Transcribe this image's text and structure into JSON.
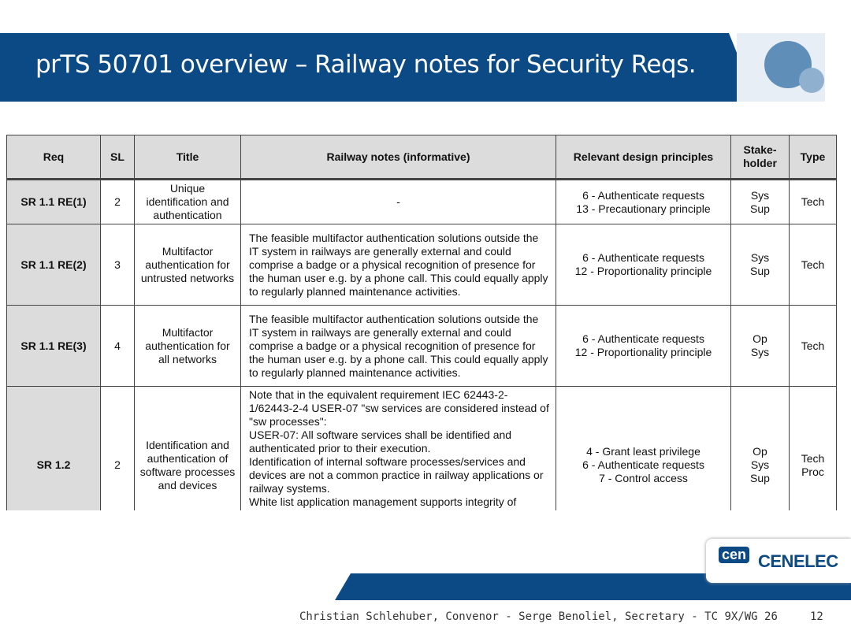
{
  "header": {
    "title": "prTS 50701 overview – Railway notes for Security Reqs."
  },
  "table": {
    "columns": [
      "Req",
      "SL",
      "Title",
      "Railway notes (informative)",
      "Relevant design principles",
      "Stake-holder",
      "Type"
    ],
    "rows": [
      {
        "req": "SR 1.1 RE(1)",
        "sl": "2",
        "title": "Unique identification and authentication",
        "notes": [
          "-"
        ],
        "principles": [
          "6 - Authenticate requests",
          "13 - Precautionary principle"
        ],
        "stakeholder": [
          "Sys",
          "Sup"
        ],
        "type": [
          "Tech"
        ]
      },
      {
        "req": "SR 1.1 RE(2)",
        "sl": "3",
        "title": "Multifactor authentication for untrusted networks",
        "notes": [
          "The feasible multifactor authentication solutions outside the IT system in railways are generally external and could comprise a badge or a physical recognition of presence for the human user e.g. by a phone call. This could equally apply to regularly planned maintenance activities."
        ],
        "principles": [
          "6 - Authenticate requests",
          "12 - Proportionality principle"
        ],
        "stakeholder": [
          "Sys",
          "Sup"
        ],
        "type": [
          "Tech"
        ]
      },
      {
        "req": "SR 1.1 RE(3)",
        "sl": "4",
        "title": "Multifactor authentication for all networks",
        "notes": [
          "The feasible multifactor authentication solutions outside the IT system in railways are generally external and could comprise a badge or a physical recognition of presence for the human user e.g. by a phone call. This could equally apply to regularly planned maintenance activities."
        ],
        "principles": [
          "6 - Authenticate requests",
          "12 - Proportionality principle"
        ],
        "stakeholder": [
          "Op",
          "Sys"
        ],
        "type": [
          "Tech"
        ]
      },
      {
        "req": "SR 1.2",
        "sl": "2",
        "title": "Identification and authentication of software processes and devices",
        "notes": [
          "Note that in the equivalent requirement IEC 62443-2-1/62443-2-4 USER-07 \"sw services are considered instead of \"sw processes\":",
          "USER-07: All software services shall be identified and authenticated prior to their execution.",
          "Identification of internal software processes/services and devices are not a common practice in railway applications or railway systems.",
          "White list application management supports integrity of"
        ],
        "principles": [
          "4 - Grant least privilege",
          "6 - Authenticate requests",
          "7 - Control access"
        ],
        "stakeholder": [
          "Op",
          "Sys",
          "Sup"
        ],
        "type": [
          "Tech",
          "Proc"
        ]
      }
    ]
  },
  "logo": {
    "left": "cen",
    "right": "CENELEC"
  },
  "footer": {
    "text": "Christian Schlehuber, Convenor -  Serge Benoliel, Secretary -  TC 9X/WG 26",
    "page": "12"
  }
}
